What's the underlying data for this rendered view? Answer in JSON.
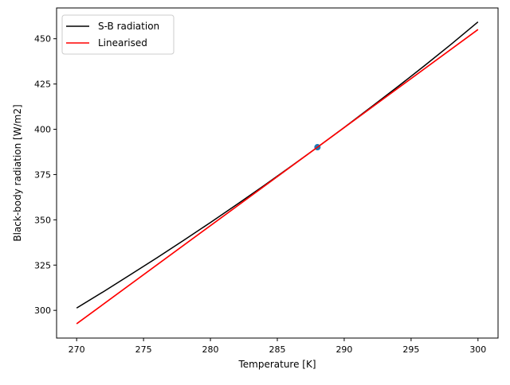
{
  "chart_data": {
    "type": "line",
    "title": "",
    "xlabel": "Temperature [K]",
    "ylabel": "Black-body radiation [W/m2]",
    "xlim": [
      268.5,
      301.5
    ],
    "ylim": [
      284.7,
      467.0
    ],
    "xticks": [
      270,
      275,
      280,
      285,
      290,
      295,
      300
    ],
    "yticks": [
      300,
      325,
      350,
      375,
      400,
      425,
      450
    ],
    "legend_position": "top-left",
    "grid": false,
    "series": [
      {
        "name": "S-B radiation",
        "color": "#000000",
        "x": [
          270,
          272,
          274,
          276,
          278,
          280,
          282,
          284,
          286,
          288,
          290,
          292,
          294,
          296,
          298,
          300
        ],
        "y": [
          301.3,
          310.3,
          319.6,
          329.0,
          338.7,
          348.5,
          358.6,
          368.9,
          379.4,
          390.1,
          401.0,
          412.2,
          423.5,
          435.1,
          447.0,
          459.3
        ]
      },
      {
        "name": "Linearised",
        "color": "#ff0000",
        "x": [
          270,
          300
        ],
        "y": [
          292.6,
          455.1
        ]
      }
    ],
    "points": [
      {
        "x": 288,
        "y": 390.1,
        "color": "#1f77b4"
      }
    ]
  }
}
